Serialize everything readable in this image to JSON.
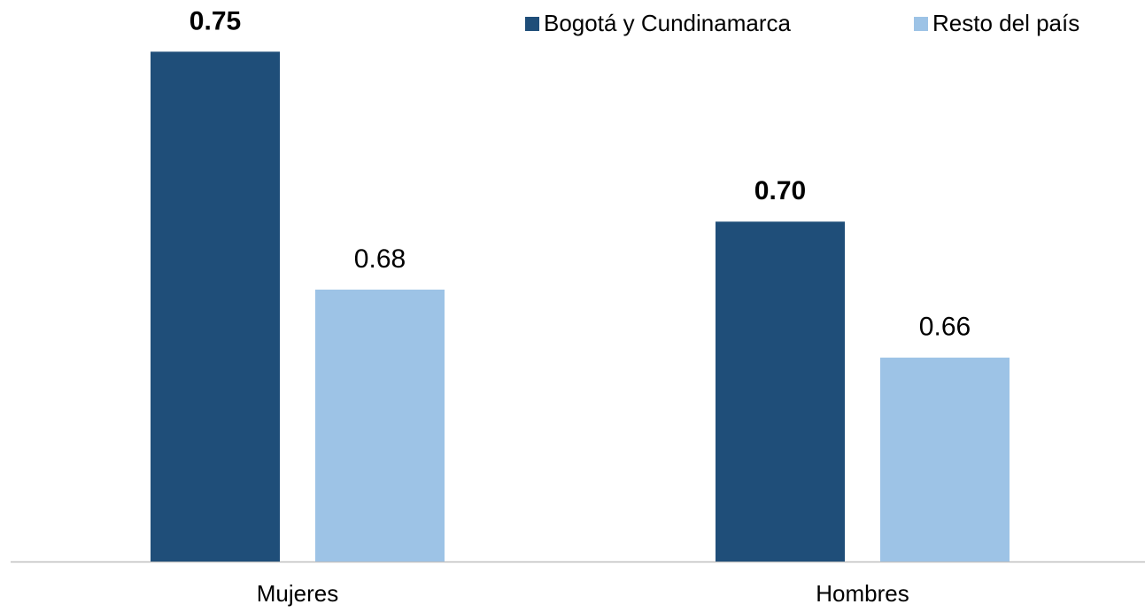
{
  "chart_data": {
    "type": "bar",
    "categories": [
      "Mujeres",
      "Hombres"
    ],
    "series": [
      {
        "name": "Bogotá y Cundinamarca",
        "color": "#1f4e79",
        "values": [
          0.75,
          0.7
        ],
        "value_labels": [
          "0.75",
          "0.70"
        ],
        "label_bold": true
      },
      {
        "name": "Resto del país",
        "color": "#9dc3e6",
        "values": [
          0.68,
          0.66
        ],
        "value_labels": [
          "0.68",
          "0.66"
        ],
        "label_bold": false
      }
    ],
    "ylim": [
      0.6,
      0.76
    ],
    "legend": "upper right"
  }
}
